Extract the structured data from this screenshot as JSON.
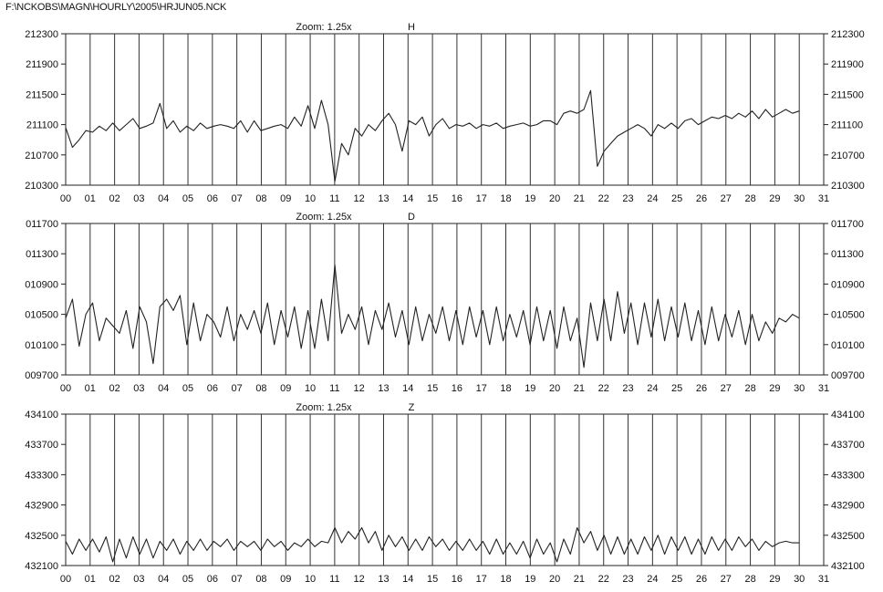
{
  "file_path": "F:\\NCKOBS\\MAGN\\HOURLY\\2005\\HRJUN05.NCK",
  "chart_data": [
    {
      "type": "line",
      "panel": "H",
      "title": "H",
      "zoom_label": "Zoom: 1.25x",
      "ylim": [
        210300,
        212300
      ],
      "y_ticks": [
        "212300",
        "211900",
        "211500",
        "211100",
        "210700",
        "210300"
      ],
      "xlim": [
        0,
        31
      ],
      "x_ticks": [
        "00",
        "01",
        "02",
        "03",
        "04",
        "05",
        "06",
        "07",
        "08",
        "09",
        "10",
        "11",
        "12",
        "13",
        "14",
        "15",
        "16",
        "17",
        "18",
        "19",
        "20",
        "21",
        "22",
        "23",
        "24",
        "25",
        "26",
        "27",
        "28",
        "29",
        "30",
        "31"
      ],
      "grid": "vertical day lines",
      "series": [
        {
          "color": "#222222",
          "values": [
            211060,
            210800,
            210900,
            211020,
            211000,
            211080,
            211020,
            211120,
            211020,
            211100,
            211180,
            211050,
            211080,
            211120,
            211380,
            211050,
            211150,
            211000,
            211080,
            211020,
            211120,
            211050,
            211080,
            211100,
            211080,
            211050,
            211150,
            211000,
            211150,
            211020,
            211050,
            211080,
            211100,
            211050,
            211200,
            211080,
            211350,
            211050,
            211420,
            211100,
            210350,
            210850,
            210700,
            211050,
            210950,
            211100,
            211020,
            211150,
            211250,
            211100,
            210750,
            211150,
            211100,
            211200,
            210950,
            211100,
            211180,
            211050,
            211100,
            211080,
            211120,
            211050,
            211100,
            211080,
            211120,
            211050,
            211080,
            211100,
            211120,
            211080,
            211100,
            211150,
            211150,
            211100,
            211250,
            211280,
            211250,
            211300,
            211550,
            210550,
            210750,
            210850,
            210950,
            211000,
            211050,
            211100,
            211050,
            210950,
            211100,
            211050,
            211120,
            211050,
            211150,
            211180,
            211100,
            211150,
            211200,
            211180,
            211220,
            211180,
            211250,
            211200,
            211280,
            211180,
            211300,
            211200,
            211250,
            211300,
            211250,
            211280
          ]
        }
      ]
    },
    {
      "type": "line",
      "panel": "D",
      "title": "D",
      "zoom_label": "Zoom: 1.25x",
      "ylim": [
        9700,
        11700
      ],
      "y_ticks": [
        "011700",
        "011300",
        "010900",
        "010500",
        "010100",
        "009700"
      ],
      "xlim": [
        0,
        31
      ],
      "x_ticks": [
        "00",
        "01",
        "02",
        "03",
        "04",
        "05",
        "06",
        "07",
        "08",
        "09",
        "10",
        "11",
        "12",
        "13",
        "14",
        "15",
        "16",
        "17",
        "18",
        "19",
        "20",
        "21",
        "22",
        "23",
        "24",
        "25",
        "26",
        "27",
        "28",
        "29",
        "30",
        "31"
      ],
      "grid": "vertical day lines",
      "series": [
        {
          "color": "#222222",
          "values": [
            10450,
            10700,
            10080,
            10500,
            10650,
            10150,
            10450,
            10350,
            10250,
            10550,
            10050,
            10600,
            10400,
            9850,
            10600,
            10700,
            10550,
            10750,
            10100,
            10650,
            10150,
            10500,
            10400,
            10200,
            10600,
            10150,
            10500,
            10300,
            10550,
            10250,
            10650,
            10100,
            10550,
            10200,
            10600,
            10050,
            10550,
            10050,
            10700,
            10150,
            11150,
            10250,
            10500,
            10300,
            10600,
            10100,
            10550,
            10300,
            10650,
            10200,
            10550,
            10100,
            10600,
            10150,
            10500,
            10250,
            10600,
            10150,
            10550,
            10100,
            10600,
            10200,
            10550,
            10100,
            10600,
            10150,
            10500,
            10200,
            10550,
            10100,
            10600,
            10150,
            10550,
            10050,
            10600,
            10150,
            10450,
            9800,
            10650,
            10150,
            10700,
            10150,
            10800,
            10250,
            10650,
            10100,
            10650,
            10200,
            10700,
            10150,
            10600,
            10200,
            10650,
            10150,
            10550,
            10100,
            10600,
            10150,
            10500,
            10200,
            10550,
            10100,
            10500,
            10150,
            10400,
            10250,
            10450,
            10400,
            10500,
            10450
          ]
        }
      ]
    },
    {
      "type": "line",
      "panel": "Z",
      "title": "Z",
      "zoom_label": "Zoom: 1.25x",
      "ylim": [
        432100,
        434100
      ],
      "y_ticks": [
        "434100",
        "433700",
        "433300",
        "432900",
        "432500",
        "432100"
      ],
      "xlim": [
        0,
        31
      ],
      "x_ticks": [
        "00",
        "01",
        "02",
        "03",
        "04",
        "05",
        "06",
        "07",
        "08",
        "09",
        "10",
        "11",
        "12",
        "13",
        "14",
        "15",
        "16",
        "17",
        "18",
        "19",
        "20",
        "21",
        "22",
        "23",
        "24",
        "25",
        "26",
        "27",
        "28",
        "29",
        "30",
        "31"
      ],
      "grid": "vertical day lines",
      "series": [
        {
          "color": "#222222",
          "values": [
            432420,
            432250,
            432450,
            432300,
            432450,
            432280,
            432480,
            432150,
            432450,
            432200,
            432480,
            432250,
            432450,
            432200,
            432420,
            432300,
            432450,
            432250,
            432420,
            432300,
            432450,
            432300,
            432420,
            432350,
            432450,
            432300,
            432420,
            432350,
            432420,
            432300,
            432450,
            432350,
            432420,
            432300,
            432400,
            432350,
            432450,
            432350,
            432420,
            432400,
            432600,
            432400,
            432550,
            432450,
            432600,
            432400,
            432550,
            432300,
            432500,
            432350,
            432480,
            432300,
            432450,
            432300,
            432480,
            432350,
            432450,
            432300,
            432420,
            432300,
            432450,
            432300,
            432420,
            432250,
            432450,
            432250,
            432400,
            432250,
            432420,
            432200,
            432450,
            432250,
            432400,
            432150,
            432450,
            432250,
            432600,
            432400,
            432550,
            432300,
            432500,
            432250,
            432480,
            432250,
            432450,
            432250,
            432480,
            432300,
            432500,
            432250,
            432480,
            432300,
            432480,
            432250,
            432450,
            432250,
            432480,
            432300,
            432450,
            432300,
            432480,
            432350,
            432450,
            432300,
            432420,
            432350,
            432400,
            432420,
            432400,
            432400
          ]
        }
      ]
    }
  ]
}
